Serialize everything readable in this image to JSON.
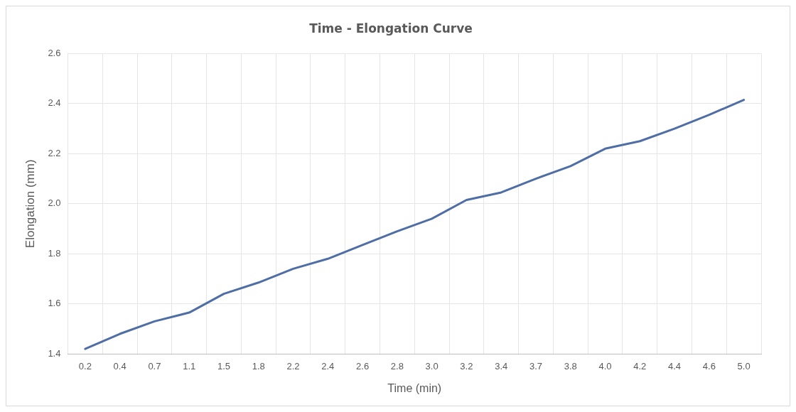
{
  "chart_data": {
    "type": "line",
    "title": "Time - Elongation Curve",
    "xlabel": "Time (min)",
    "ylabel": "Elongation (mm)",
    "categories": [
      "0.2",
      "0.4",
      "0.7",
      "1.1",
      "1.5",
      "1.8",
      "2.2",
      "2.4",
      "2.6",
      "2.8",
      "3.0",
      "3.2",
      "3.4",
      "3.7",
      "3.8",
      "4.0",
      "4.2",
      "4.4",
      "4.6",
      "5.0"
    ],
    "series": [
      {
        "color": "#4f6ea6",
        "values": [
          1.42,
          1.48,
          1.53,
          1.565,
          1.64,
          1.685,
          1.74,
          1.78,
          1.835,
          1.89,
          1.94,
          2.015,
          2.045,
          2.1,
          2.15,
          2.22,
          2.25,
          2.3,
          2.355,
          2.415
        ]
      }
    ],
    "ylim": [
      1.4,
      2.6
    ],
    "yticks": [
      1.4,
      1.6,
      1.8,
      {
        "value": 2,
        "label": "2.0"
      },
      2.2,
      2.4,
      2.6
    ],
    "grid": true,
    "legend": false,
    "marker": "none",
    "line_style": "solid"
  }
}
